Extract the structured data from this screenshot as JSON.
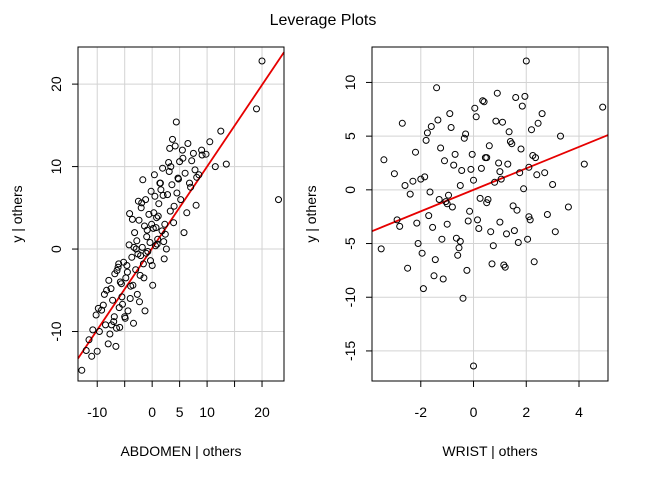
{
  "figure": {
    "title": "Leverage Plots"
  },
  "chart_data": [
    {
      "type": "scatter",
      "xlabel": "ABDOMEN | others",
      "ylabel": "y  | others",
      "xlim": [
        -13.5,
        24
      ],
      "ylim": [
        -16,
        24.5
      ],
      "x_ticks": [
        -10,
        -5,
        0,
        5,
        10,
        15,
        20
      ],
      "x_tick_labels": [
        "-10",
        "",
        "0",
        "5",
        "10",
        "",
        "20"
      ],
      "y_ticks": [
        -10,
        0,
        10,
        20
      ],
      "y_tick_labels": [
        "-10",
        "0",
        "10",
        "20"
      ],
      "grid": true,
      "fit_line": {
        "slope": 0.99,
        "intercept": 0.1,
        "color": "#e60000"
      },
      "x": [
        -12.8,
        -12.0,
        -11.5,
        -11.0,
        -10.8,
        -10.2,
        -10.0,
        -9.6,
        -9.2,
        -8.9,
        -8.5,
        -8.3,
        -8.0,
        -7.7,
        -7.5,
        -7.2,
        -7.0,
        -6.8,
        -6.5,
        -6.2,
        -6.0,
        -5.8,
        -5.5,
        -5.2,
        -5.0,
        -4.8,
        -4.5,
        -4.2,
        -4.0,
        -3.7,
        -3.5,
        -3.2,
        -3.0,
        -2.8,
        -2.6,
        -2.4,
        -2.2,
        -2.0,
        -1.8,
        -1.6,
        -1.4,
        -1.2,
        -1.0,
        -0.8,
        -0.6,
        -0.4,
        -0.2,
        0.0,
        0.2,
        0.4,
        0.6,
        0.8,
        1.0,
        1.2,
        1.5,
        1.8,
        2.0,
        2.3,
        2.6,
        3.0,
        3.3,
        3.6,
        4.0,
        4.4,
        4.8,
        5.2,
        5.6,
        6.0,
        6.5,
        7.0,
        7.5,
        8.0,
        8.5,
        9.0,
        9.8,
        10.5,
        11.5,
        12.5,
        13.5,
        19.0,
        20.0,
        23.0,
        -9.8,
        -8.7,
        -7.9,
        -6.9,
        -6.1,
        -5.4,
        -4.6,
        -3.9,
        -3.3,
        -2.7,
        -2.1,
        -1.5,
        -0.9,
        -0.3,
        0.3,
        0.9,
        1.6,
        2.4,
        3.1,
        3.9,
        4.7,
        5.5,
        6.3,
        7.2,
        8.1,
        9.1,
        -7.4,
        -6.4,
        -5.6,
        -4.4,
        -3.6,
        -2.9,
        -1.9,
        -1.1,
        -0.1,
        0.7,
        1.4,
        2.2,
        3.4,
        4.5,
        5.8,
        7.8,
        -5.9,
        -4.9,
        -3.4,
        -2.3,
        -1.3,
        0.1,
        1.1,
        2.8,
        4.2,
        6.8,
        2.1,
        3.7,
        5.0,
        -4.1,
        -1.7,
        0.5,
        1.9,
        3.2,
        -6.6,
        -2.5
      ],
      "y": [
        -14.7,
        -12.3,
        -11.0,
        -13.0,
        -9.8,
        -8.0,
        -12.4,
        -10.0,
        -7.4,
        -6.8,
        -9.2,
        -5.0,
        -11.5,
        -10.3,
        -4.8,
        -6.2,
        -8.8,
        -3.0,
        -9.6,
        -2.2,
        -7.1,
        -4.0,
        -5.8,
        -1.6,
        -8.2,
        -3.5,
        -2.8,
        0.5,
        -6.0,
        -1.0,
        -4.4,
        2.0,
        -2.5,
        1.0,
        -0.6,
        3.5,
        -3.2,
        5.0,
        0.2,
        -1.8,
        2.8,
        6.0,
        1.5,
        -0.3,
        4.2,
        0.8,
        7.0,
        -2.0,
        2.5,
        9.0,
        0.4,
        3.8,
        1.2,
        5.5,
        8.0,
        2.2,
        6.5,
        3.0,
        0.0,
        10.5,
        4.6,
        7.8,
        5.2,
        15.4,
        8.5,
        6.0,
        11.0,
        9.2,
        12.8,
        7.5,
        11.6,
        5.3,
        9.0,
        12.0,
        11.5,
        13.0,
        10.0,
        14.3,
        10.3,
        17.0,
        22.8,
        6.0,
        -7.2,
        -5.5,
        -3.8,
        -8.2,
        -1.8,
        -6.7,
        -2.0,
        -4.5,
        0.2,
        -5.5,
        -0.8,
        -3.5,
        2.3,
        -1.4,
        4.4,
        0.6,
        7.2,
        1.8,
        9.4,
        3.2,
        8.6,
        12.0,
        4.4,
        10.7,
        8.7,
        11.4,
        -9.2,
        -2.6,
        -4.2,
        -7.5,
        3.6,
        0.0,
        5.6,
        -0.5,
        3.0,
        2.6,
        8.0,
        -1.2,
        10.0,
        6.8,
        2.0,
        9.6,
        -9.5,
        -8.4,
        -9.0,
        -6.4,
        -7.5,
        -4.4,
        4.0,
        6.6,
        12.5,
        8.0,
        0.9,
        13.3,
        10.6,
        4.3,
        8.4,
        6.4,
        9.8,
        12.2,
        -11.8,
        5.8
      ]
    },
    {
      "type": "scatter",
      "xlabel": "WRIST | others",
      "ylabel": "y  | others",
      "xlim": [
        -3.85,
        5.1
      ],
      "ylim": [
        -17.8,
        13.3
      ],
      "x_ticks": [
        -2,
        0,
        2,
        4
      ],
      "x_tick_labels": [
        "-2",
        "0",
        "2",
        "4"
      ],
      "y_ticks": [
        -15,
        -10,
        -5,
        0,
        5,
        10
      ],
      "y_tick_labels": [
        "-15",
        "-10",
        "-5",
        "0",
        "5",
        "10"
      ],
      "grid": true,
      "fit_line": {
        "slope": 1.0,
        "intercept": 0.0,
        "color": "#e60000"
      },
      "x": [
        -3.5,
        -3.0,
        -2.9,
        -2.7,
        -2.5,
        -2.4,
        -2.2,
        -2.1,
        -2.0,
        -1.9,
        -1.8,
        -1.7,
        -1.6,
        -1.5,
        -1.4,
        -1.3,
        -1.2,
        -1.1,
        -1.0,
        -0.9,
        -0.8,
        -0.7,
        -0.6,
        -0.5,
        -0.4,
        -0.3,
        -0.2,
        -0.1,
        0.0,
        0.1,
        0.2,
        0.3,
        0.4,
        0.5,
        0.6,
        0.7,
        0.8,
        0.9,
        1.0,
        1.1,
        1.2,
        1.3,
        1.4,
        1.5,
        1.6,
        1.7,
        1.8,
        1.9,
        2.0,
        2.1,
        2.2,
        2.3,
        2.4,
        2.6,
        2.8,
        3.0,
        3.3,
        3.6,
        4.2,
        4.9,
        -3.4,
        -2.8,
        -2.3,
        -1.95,
        -1.75,
        -1.55,
        -1.35,
        -1.15,
        -0.95,
        -0.75,
        -0.55,
        -0.35,
        -0.15,
        0.05,
        0.25,
        0.45,
        0.65,
        0.85,
        1.05,
        1.25,
        1.45,
        1.65,
        1.85,
        2.05,
        2.25,
        2.45,
        2.7,
        3.1,
        -2.6,
        -2.15,
        -1.85,
        -1.45,
        -1.25,
        -1.05,
        -0.85,
        -0.65,
        -0.45,
        -0.25,
        -0.05,
        0.15,
        0.35,
        0.55,
        0.75,
        0.95,
        1.15,
        1.35,
        1.55,
        1.75,
        1.95,
        2.15,
        2.35,
        -1.65,
        -0.5,
        0.0,
        0.5,
        1.0,
        -1.0,
        2.1
      ],
      "y": [
        -5.5,
        1.5,
        -2.8,
        6.2,
        -7.3,
        -0.4,
        3.5,
        -5.0,
        1.0,
        -9.2,
        4.6,
        -2.4,
        5.9,
        -8.0,
        9.5,
        -0.9,
        -4.6,
        2.7,
        -3.2,
        7.1,
        -1.6,
        3.3,
        -6.1,
        0.4,
        -10.1,
        5.2,
        -2.9,
        1.9,
        -16.4,
        6.8,
        -3.6,
        2.0,
        8.2,
        -1.2,
        4.1,
        -6.9,
        0.7,
        9.0,
        -3.0,
        6.3,
        -7.2,
        2.4,
        4.5,
        -1.5,
        8.6,
        -4.9,
        3.8,
        0.1,
        12.0,
        -2.5,
        5.6,
        -6.7,
        1.4,
        7.1,
        -2.3,
        0.5,
        5.0,
        -1.6,
        2.4,
        7.7,
        2.8,
        -3.4,
        0.8,
        -5.9,
        5.3,
        -3.5,
        6.5,
        -8.3,
        -0.5,
        2.3,
        -5.4,
        4.8,
        -2.0,
        7.6,
        -0.8,
        3.0,
        -3.9,
        6.4,
        1.0,
        -4.1,
        4.3,
        -1.9,
        7.8,
        -4.6,
        3.2,
        6.2,
        1.6,
        -3.9,
        0.4,
        -3.1,
        1.2,
        -6.5,
        3.9,
        -1.1,
        5.8,
        -4.5,
        1.8,
        -7.5,
        3.3,
        -2.8,
        8.3,
        -0.9,
        -5.2,
        2.5,
        -7.0,
        5.4,
        -3.8,
        1.6,
        8.7,
        -2.8,
        3.0,
        -0.2,
        -4.8,
        0.9,
        3.0,
        1.7,
        -1.3,
        2.1
      ]
    }
  ]
}
